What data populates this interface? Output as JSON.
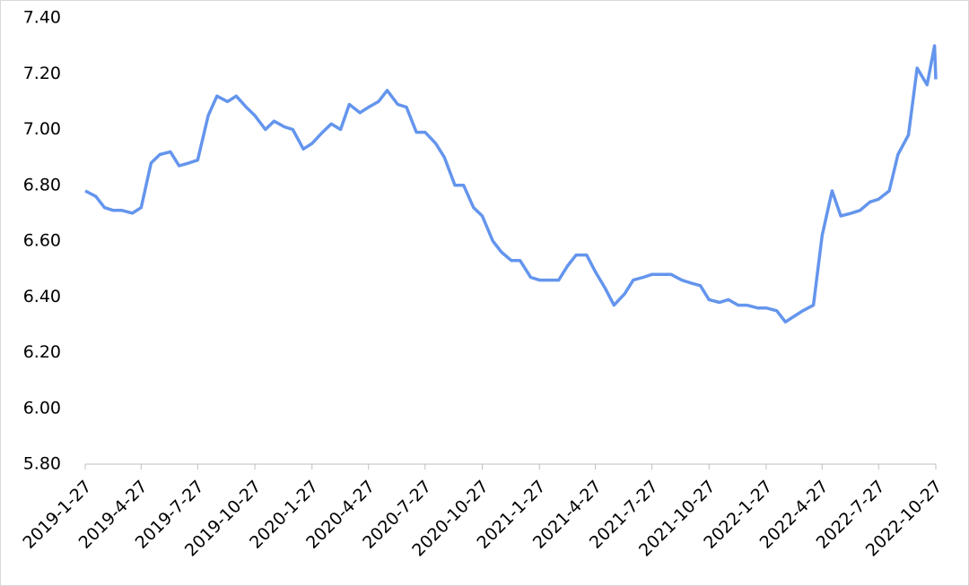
{
  "chart_data": {
    "type": "line",
    "color": "#6495ed",
    "x": [
      "2019-1-27",
      "2019-2-13",
      "2019-2-27",
      "2019-3-13",
      "2019-3-27",
      "2019-4-13",
      "2019-4-27",
      "2019-5-13",
      "2019-5-27",
      "2019-6-13",
      "2019-6-27",
      "2019-7-13",
      "2019-7-27",
      "2019-8-13",
      "2019-8-27",
      "2019-9-13",
      "2019-9-27",
      "2019-10-13",
      "2019-10-27",
      "2019-11-13",
      "2019-11-27",
      "2019-12-13",
      "2019-12-27",
      "2020-1-13",
      "2020-1-27",
      "2020-2-13",
      "2020-2-27",
      "2020-3-13",
      "2020-3-27",
      "2020-4-13",
      "2020-4-27",
      "2020-5-13",
      "2020-5-27",
      "2020-6-13",
      "2020-6-27",
      "2020-7-13",
      "2020-7-27",
      "2020-8-13",
      "2020-8-27",
      "2020-9-13",
      "2020-9-27",
      "2020-10-13",
      "2020-10-27",
      "2020-11-13",
      "2020-11-27",
      "2020-12-13",
      "2020-12-27",
      "2021-1-13",
      "2021-1-27",
      "2021-2-13",
      "2021-2-27",
      "2021-3-13",
      "2021-3-27",
      "2021-4-13",
      "2021-4-27",
      "2021-5-13",
      "2021-5-27",
      "2021-6-13",
      "2021-6-27",
      "2021-7-13",
      "2021-7-27",
      "2021-8-13",
      "2021-8-27",
      "2021-9-13",
      "2021-9-27",
      "2021-10-13",
      "2021-10-27",
      "2021-11-13",
      "2021-11-27",
      "2021-12-13",
      "2021-12-27",
      "2022-1-13",
      "2022-1-27",
      "2022-2-13",
      "2022-2-27",
      "2022-3-13",
      "2022-3-27",
      "2022-4-13",
      "2022-4-27",
      "2022-5-13",
      "2022-5-27",
      "2022-6-13",
      "2022-6-27",
      "2022-7-13",
      "2022-7-27",
      "2022-8-13",
      "2022-8-27",
      "2022-9-13",
      "2022-9-27",
      "2022-10-13",
      "2022-10-25",
      "2022-10-27"
    ],
    "values": [
      6.78,
      6.76,
      6.72,
      6.71,
      6.71,
      6.7,
      6.72,
      6.88,
      6.91,
      6.92,
      6.87,
      6.88,
      6.89,
      7.05,
      7.12,
      7.1,
      7.12,
      7.08,
      7.05,
      7.0,
      7.03,
      7.01,
      7.0,
      6.93,
      6.95,
      6.99,
      7.02,
      7.0,
      7.09,
      7.06,
      7.08,
      7.1,
      7.14,
      7.09,
      7.08,
      6.99,
      6.99,
      6.95,
      6.9,
      6.8,
      6.8,
      6.72,
      6.69,
      6.6,
      6.56,
      6.53,
      6.53,
      6.47,
      6.46,
      6.46,
      6.46,
      6.51,
      6.55,
      6.55,
      6.49,
      6.43,
      6.37,
      6.41,
      6.46,
      6.47,
      6.48,
      6.48,
      6.48,
      6.46,
      6.45,
      6.44,
      6.39,
      6.38,
      6.39,
      6.37,
      6.37,
      6.36,
      6.36,
      6.35,
      6.31,
      6.33,
      6.35,
      6.37,
      6.62,
      6.78,
      6.69,
      6.7,
      6.71,
      6.74,
      6.75,
      6.78,
      6.91,
      6.98,
      7.22,
      7.16,
      7.3,
      7.18
    ],
    "xlim": [
      "2019-1-27",
      "2022-10-27"
    ],
    "xticks": [
      "2019-1-27",
      "2019-4-27",
      "2019-7-27",
      "2019-10-27",
      "2020-1-27",
      "2020-4-27",
      "2020-7-27",
      "2020-10-27",
      "2021-1-27",
      "2021-4-27",
      "2021-7-27",
      "2021-10-27",
      "2022-1-27",
      "2022-4-27",
      "2022-7-27",
      "2022-10-27"
    ],
    "ylim": [
      5.8,
      7.4
    ],
    "yticks": [
      {
        "value": 5.8,
        "label": "5.80"
      },
      {
        "value": 6.0,
        "label": "6.00"
      },
      {
        "value": 6.2,
        "label": "6.20"
      },
      {
        "value": 6.4,
        "label": "6.40"
      },
      {
        "value": 6.6,
        "label": "6.60"
      },
      {
        "value": 6.8,
        "label": "6.80"
      },
      {
        "value": 7.0,
        "label": "7.00"
      },
      {
        "value": 7.2,
        "label": "7.20"
      },
      {
        "value": 7.4,
        "label": "7.40"
      }
    ],
    "grid": false
  }
}
